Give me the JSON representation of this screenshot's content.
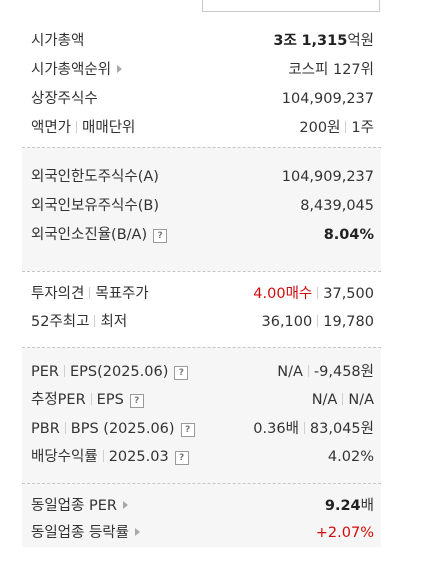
{
  "summary": {
    "market_cap_label": "시가총액",
    "market_cap_trillion": "3조",
    "market_cap_billion": "1,315",
    "market_cap_unit": "억원",
    "market_cap_rank_label": "시가총액순위",
    "market_cap_rank_value": "코스피 127위",
    "shares_label": "상장주식수",
    "shares_value": "104,909,237",
    "par_label": "액면가",
    "trade_unit_label": "매매단위",
    "par_value": "200원",
    "trade_unit_value": "1주"
  },
  "foreign": {
    "limit_label": "외국인한도주식수(A)",
    "limit_value": "104,909,237",
    "owned_label": "외국인보유주식수(B)",
    "owned_value": "8,439,045",
    "ratio_label": "외국인소진율(B/A)",
    "ratio_value": "8.04%"
  },
  "opinion": {
    "opinion_label": "투자의견",
    "target_label": "목표주가",
    "opinion_value": "4.00매수",
    "target_value": "37,500",
    "week52_high_label": "52주최고",
    "week52_low_label": "최저",
    "week52_high_value": "36,100",
    "week52_low_value": "19,780"
  },
  "valuation": {
    "per_label": "PER",
    "eps_label": "EPS(2025.06)",
    "per_value": "N/A",
    "eps_value": "-9,458원",
    "est_per_label": "추정PER",
    "est_eps_label": "EPS",
    "est_per_value": "N/A",
    "est_eps_value": "N/A",
    "pbr_label": "PBR",
    "bps_label": "BPS (2025.06)",
    "pbr_value": "0.36배",
    "bps_value": "83,045원",
    "dividend_label": "배당수익률",
    "dividend_date": "2025.03",
    "dividend_value": "4.02%"
  },
  "industry": {
    "per_label": "동일업종 PER",
    "per_number": "9.24",
    "per_unit": "배",
    "change_label": "동일업종 등락률",
    "change_value": "+2.07%"
  },
  "icons": {
    "help_glyph": "?"
  },
  "colors": {
    "up_red": "#d20c0c",
    "section_gray": "#f6f6f6"
  }
}
